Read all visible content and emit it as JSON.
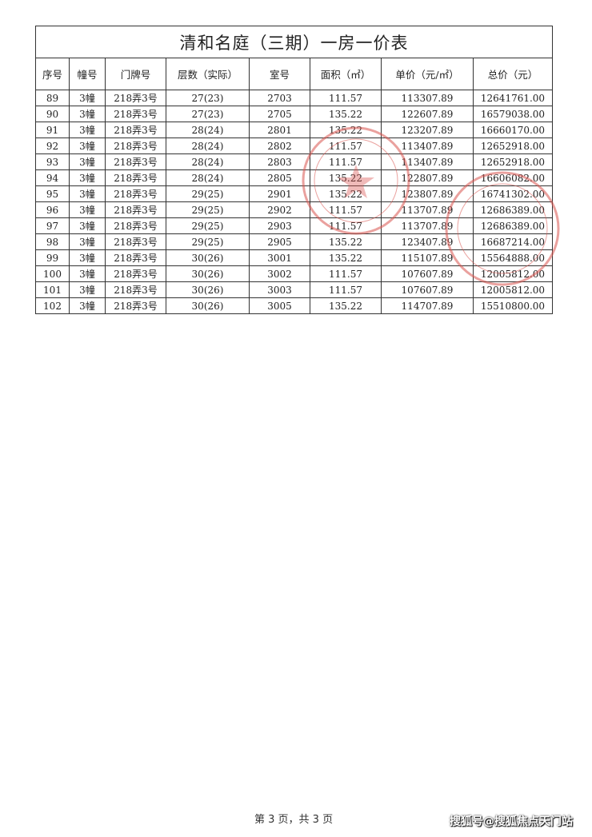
{
  "title": "清和名庭（三期）一房一价表",
  "columns": [
    "序号",
    "幢号",
    "门牌号",
    "层数（实际）",
    "室号",
    "面积（㎡）",
    "单价（元/㎡）",
    "总价（元）"
  ],
  "rows": [
    [
      "89",
      "3幢",
      "218弄3号",
      "27(23)",
      "2703",
      "111.57",
      "113307.89",
      "12641761.00"
    ],
    [
      "90",
      "3幢",
      "218弄3号",
      "27(23)",
      "2705",
      "135.22",
      "122607.89",
      "16579038.00"
    ],
    [
      "91",
      "3幢",
      "218弄3号",
      "28(24)",
      "2801",
      "135.22",
      "123207.89",
      "16660170.00"
    ],
    [
      "92",
      "3幢",
      "218弄3号",
      "28(24)",
      "2802",
      "111.57",
      "113407.89",
      "12652918.00"
    ],
    [
      "93",
      "3幢",
      "218弄3号",
      "28(24)",
      "2803",
      "111.57",
      "113407.89",
      "12652918.00"
    ],
    [
      "94",
      "3幢",
      "218弄3号",
      "28(24)",
      "2805",
      "135.22",
      "122807.89",
      "16606082.00"
    ],
    [
      "95",
      "3幢",
      "218弄3号",
      "29(25)",
      "2901",
      "135.22",
      "123807.89",
      "16741302.00"
    ],
    [
      "96",
      "3幢",
      "218弄3号",
      "29(25)",
      "2902",
      "111.57",
      "113707.89",
      "12686389.00"
    ],
    [
      "97",
      "3幢",
      "218弄3号",
      "29(25)",
      "2903",
      "111.57",
      "113707.89",
      "12686389.00"
    ],
    [
      "98",
      "3幢",
      "218弄3号",
      "29(25)",
      "2905",
      "135.22",
      "123407.89",
      "16687214.00"
    ],
    [
      "99",
      "3幢",
      "218弄3号",
      "30(26)",
      "3001",
      "135.22",
      "115107.89",
      "15564888.00"
    ],
    [
      "100",
      "3幢",
      "218弄3号",
      "30(26)",
      "3002",
      "111.57",
      "107607.89",
      "12005812.00"
    ],
    [
      "101",
      "3幢",
      "218弄3号",
      "30(26)",
      "3003",
      "111.57",
      "107607.89",
      "12005812.00"
    ],
    [
      "102",
      "3幢",
      "218弄3号",
      "30(26)",
      "3005",
      "135.22",
      "114707.89",
      "15510800.00"
    ]
  ],
  "footer": "第 3 页，共 3 页",
  "watermark": "搜狐号@搜狐焦点天门站",
  "stamp_color": "#d9534f"
}
